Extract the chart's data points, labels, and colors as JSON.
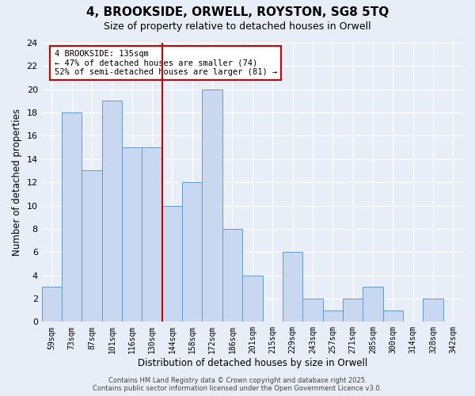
{
  "title": "4, BROOKSIDE, ORWELL, ROYSTON, SG8 5TQ",
  "subtitle": "Size of property relative to detached houses in Orwell",
  "xlabel": "Distribution of detached houses by size in Orwell",
  "ylabel": "Number of detached properties",
  "bin_labels": [
    "59sqm",
    "73sqm",
    "87sqm",
    "101sqm",
    "116sqm",
    "130sqm",
    "144sqm",
    "158sqm",
    "172sqm",
    "186sqm",
    "201sqm",
    "215sqm",
    "229sqm",
    "243sqm",
    "257sqm",
    "271sqm",
    "285sqm",
    "300sqm",
    "314sqm",
    "328sqm",
    "342sqm"
  ],
  "bar_heights": [
    3,
    18,
    13,
    19,
    15,
    15,
    10,
    12,
    20,
    8,
    4,
    0,
    6,
    2,
    1,
    2,
    3,
    1,
    0,
    2,
    0
  ],
  "bar_color": "#c8d8f0",
  "bar_edgecolor": "#6699cc",
  "vline_x": 5.5,
  "vline_color": "#cc0000",
  "annotation_title": "4 BROOKSIDE: 135sqm",
  "annotation_line1": "← 47% of detached houses are smaller (74)",
  "annotation_line2": "52% of semi-detached houses are larger (81) →",
  "annotation_box_edgecolor": "#cc0000",
  "annotation_box_facecolor": "#ffffff",
  "ylim": [
    0,
    24
  ],
  "yticks": [
    0,
    2,
    4,
    6,
    8,
    10,
    12,
    14,
    16,
    18,
    20,
    22,
    24
  ],
  "background_color": "#e8eef8",
  "grid_color": "#ffffff",
  "footer_line1": "Contains HM Land Registry data © Crown copyright and database right 2025.",
  "footer_line2": "Contains public sector information licensed under the Open Government Licence v3.0."
}
